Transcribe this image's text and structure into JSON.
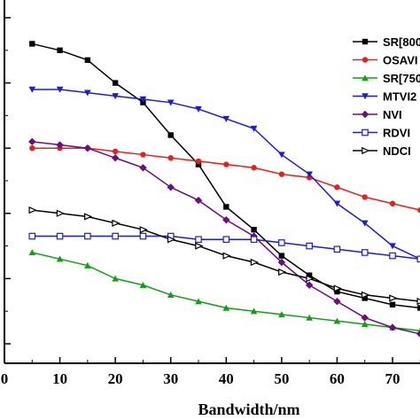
{
  "chart_data": {
    "type": "line",
    "xlabel": "Bandwidth/nm",
    "ylabel": "",
    "x": [
      5,
      10,
      15,
      20,
      25,
      30,
      35,
      40,
      45,
      50,
      55,
      60,
      65,
      70,
      75
    ],
    "xlim": [
      0,
      75
    ],
    "ylim": [
      0,
      1
    ],
    "x_ticks": [
      "0",
      "10",
      "20",
      "30",
      "40",
      "50",
      "60",
      "70"
    ],
    "legend_position": "top-right",
    "grid": false,
    "series": [
      {
        "name": "SR[800",
        "color": "#000000",
        "marker": "square-filled",
        "values": [
          0.92,
          0.9,
          0.87,
          0.8,
          0.74,
          0.64,
          0.55,
          0.42,
          0.35,
          0.27,
          0.21,
          0.16,
          0.14,
          0.12,
          0.11
        ]
      },
      {
        "name": "OSAVI",
        "color": "#e8201a",
        "marker": "circle-filled",
        "values": [
          0.6,
          0.6,
          0.6,
          0.59,
          0.58,
          0.57,
          0.56,
          0.55,
          0.54,
          0.52,
          0.51,
          0.48,
          0.45,
          0.43,
          0.41
        ]
      },
      {
        "name": "SR[750",
        "color": "#11a011",
        "marker": "triangle-up-filled",
        "values": [
          0.28,
          0.26,
          0.24,
          0.2,
          0.18,
          0.15,
          0.13,
          0.11,
          0.1,
          0.09,
          0.08,
          0.07,
          0.06,
          0.05,
          0.04
        ]
      },
      {
        "name": "MTVI2",
        "color": "#1c1cd8",
        "marker": "triangle-down-filled",
        "values": [
          0.78,
          0.78,
          0.77,
          0.76,
          0.75,
          0.74,
          0.72,
          0.69,
          0.66,
          0.58,
          0.52,
          0.43,
          0.37,
          0.3,
          0.26
        ]
      },
      {
        "name": "NVI",
        "color": "#6a0d80",
        "marker": "diamond-filled",
        "values": [
          0.62,
          0.61,
          0.6,
          0.57,
          0.54,
          0.48,
          0.44,
          0.38,
          0.33,
          0.25,
          0.18,
          0.13,
          0.08,
          0.05,
          0.03
        ]
      },
      {
        "name": "RDVI",
        "color": "#1c1cd8",
        "marker": "square-open",
        "values": [
          0.33,
          0.33,
          0.33,
          0.33,
          0.33,
          0.33,
          0.32,
          0.32,
          0.32,
          0.31,
          0.3,
          0.29,
          0.28,
          0.27,
          0.26
        ]
      },
      {
        "name": "NDCI",
        "color": "#000000",
        "marker": "triangle-right-open",
        "values": [
          0.41,
          0.4,
          0.39,
          0.37,
          0.35,
          0.32,
          0.3,
          0.27,
          0.25,
          0.22,
          0.2,
          0.17,
          0.15,
          0.14,
          0.13
        ]
      }
    ]
  }
}
